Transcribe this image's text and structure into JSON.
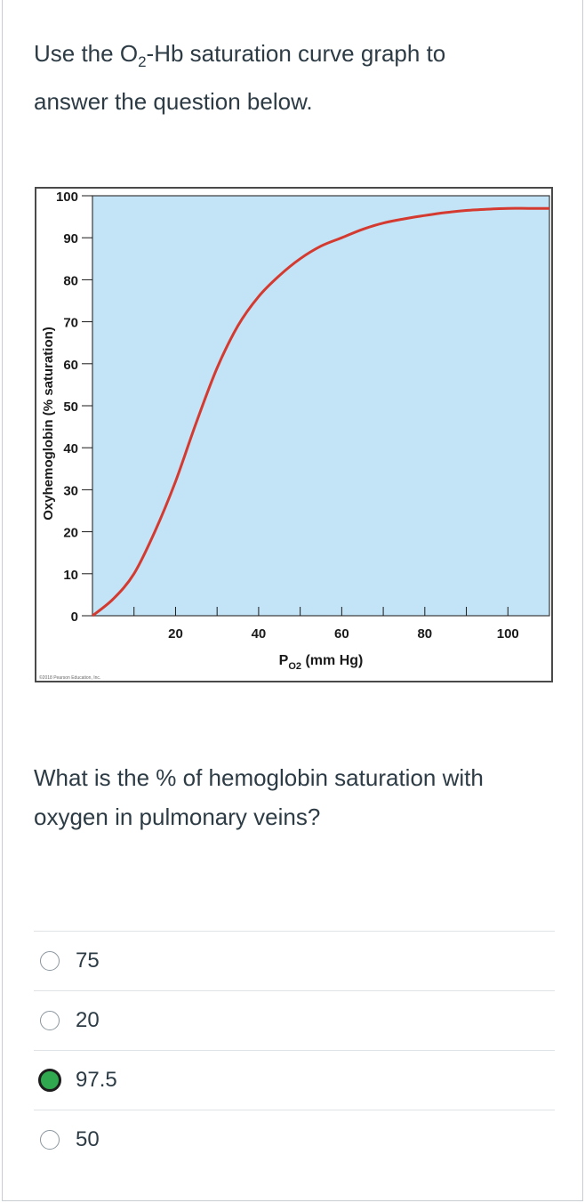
{
  "prompt": {
    "line1_pre": "Use the O",
    "line1_sub": "2",
    "line1_post": "-Hb saturation curve graph to",
    "line2": "answer the question below."
  },
  "question": {
    "line1": "What is the % of hemoglobin saturation with",
    "line2": "oxygen in pulmonary veins?"
  },
  "answers": [
    {
      "label": "75",
      "selected": false
    },
    {
      "label": "20",
      "selected": false
    },
    {
      "label": "97.5",
      "selected": true
    },
    {
      "label": "50",
      "selected": false
    }
  ],
  "colors": {
    "plot_background": "#c3e3f6",
    "curve": "#d43a2f",
    "selected_radio": "#2fa84f"
  },
  "chart_data": {
    "type": "line",
    "ylabel": "Oxyhemoglobin (% saturation)",
    "xlabel_pre": "P",
    "xlabel_sub": "O2",
    "xlabel_post": " (mm Hg)",
    "xlim": [
      0,
      110
    ],
    "ylim": [
      0,
      100
    ],
    "x_ticks": [
      20,
      40,
      60,
      80,
      100
    ],
    "y_ticks": [
      0,
      10,
      20,
      30,
      40,
      50,
      60,
      70,
      80,
      90,
      100
    ],
    "grid": false,
    "credit": "©2018 Pearson Education, Inc.",
    "series": [
      {
        "x": [
          0,
          5,
          10,
          15,
          20,
          25,
          30,
          35,
          40,
          45,
          50,
          55,
          60,
          65,
          70,
          75,
          80,
          85,
          90,
          95,
          100,
          105,
          110
        ],
        "y": [
          0,
          4,
          10,
          20,
          32,
          46,
          59,
          69,
          76,
          81,
          85,
          88,
          90,
          92,
          93.5,
          94.5,
          95.3,
          96,
          96.5,
          96.8,
          97,
          97,
          97
        ]
      }
    ]
  }
}
